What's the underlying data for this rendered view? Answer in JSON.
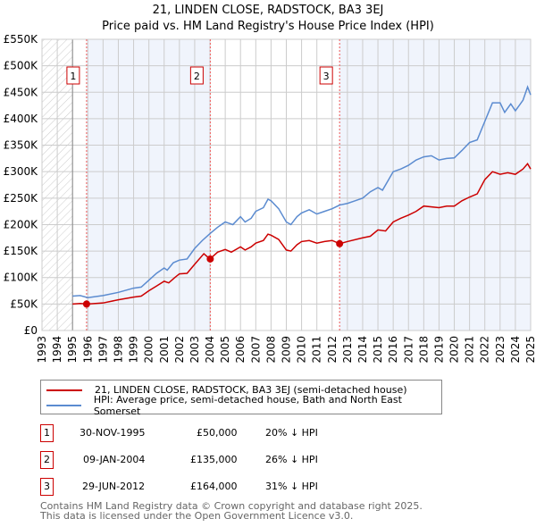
{
  "title": "21, LINDEN CLOSE, RADSTOCK, BA3 3EJ",
  "subtitle": "Price paid vs. HM Land Registry's House Price Index (HPI)",
  "chart_data": {
    "type": "line",
    "xlim": [
      1993,
      2025
    ],
    "ylim": [
      0,
      550000
    ],
    "y_ticks": [
      {
        "v": 0,
        "label": "£0"
      },
      {
        "v": 50000,
        "label": "£50K"
      },
      {
        "v": 100000,
        "label": "£100K"
      },
      {
        "v": 150000,
        "label": "£150K"
      },
      {
        "v": 200000,
        "label": "£200K"
      },
      {
        "v": 250000,
        "label": "£250K"
      },
      {
        "v": 300000,
        "label": "£300K"
      },
      {
        "v": 350000,
        "label": "£350K"
      },
      {
        "v": 400000,
        "label": "£400K"
      },
      {
        "v": 450000,
        "label": "£450K"
      },
      {
        "v": 500000,
        "label": "£500K"
      },
      {
        "v": 550000,
        "label": "£550K"
      }
    ],
    "x_ticks": [
      "1993",
      "1994",
      "1995",
      "1996",
      "1997",
      "1998",
      "1999",
      "2000",
      "2001",
      "2002",
      "2003",
      "2004",
      "2005",
      "2006",
      "2007",
      "2008",
      "2009",
      "2010",
      "2011",
      "2012",
      "2013",
      "2014",
      "2015",
      "2016",
      "2017",
      "2018",
      "2019",
      "2020",
      "2021",
      "2022",
      "2023",
      "2024",
      "2025"
    ],
    "series": [
      {
        "name": "21, LINDEN CLOSE, RADSTOCK, BA3 3EJ (semi-detached house)",
        "color": "#cc0000",
        "points": [
          [
            1995,
            50
          ],
          [
            1995.5,
            51
          ],
          [
            1996,
            50
          ],
          [
            1997,
            52
          ],
          [
            1998,
            58
          ],
          [
            1999,
            63
          ],
          [
            1999.5,
            65
          ],
          [
            2000,
            75
          ],
          [
            2000.5,
            84
          ],
          [
            2001,
            93
          ],
          [
            2001.3,
            90
          ],
          [
            2001.7,
            100
          ],
          [
            2002,
            107
          ],
          [
            2002.5,
            108
          ],
          [
            2003,
            125
          ],
          [
            2003.6,
            145
          ],
          [
            2004,
            135
          ],
          [
            2004.5,
            148
          ],
          [
            2005,
            153
          ],
          [
            2005.4,
            148
          ],
          [
            2006,
            158
          ],
          [
            2006.3,
            152
          ],
          [
            2006.7,
            158
          ],
          [
            2007,
            165
          ],
          [
            2007.5,
            170
          ],
          [
            2007.8,
            182
          ],
          [
            2008,
            180
          ],
          [
            2008.5,
            172
          ],
          [
            2009,
            152
          ],
          [
            2009.3,
            150
          ],
          [
            2009.7,
            162
          ],
          [
            2010,
            168
          ],
          [
            2010.5,
            170
          ],
          [
            2011,
            165
          ],
          [
            2011.5,
            168
          ],
          [
            2012,
            170
          ],
          [
            2012.5,
            164
          ],
          [
            2013,
            168
          ],
          [
            2014,
            175
          ],
          [
            2014.5,
            178
          ],
          [
            2015,
            190
          ],
          [
            2015.5,
            188
          ],
          [
            2016,
            205
          ],
          [
            2016.5,
            212
          ],
          [
            2017,
            218
          ],
          [
            2017.5,
            225
          ],
          [
            2018,
            235
          ],
          [
            2019,
            232
          ],
          [
            2019.5,
            235
          ],
          [
            2020,
            235
          ],
          [
            2020.5,
            245
          ],
          [
            2021,
            252
          ],
          [
            2021.5,
            258
          ],
          [
            2022,
            285
          ],
          [
            2022.5,
            300
          ],
          [
            2023,
            295
          ],
          [
            2023.5,
            298
          ],
          [
            2024,
            295
          ],
          [
            2024.5,
            305
          ],
          [
            2024.8,
            315
          ],
          [
            2025,
            305
          ]
        ]
      },
      {
        "name": "HPI: Average price, semi-detached house, Bath and North East Somerset",
        "color": "#5b8bd0",
        "points": [
          [
            1995,
            65
          ],
          [
            1995.5,
            66
          ],
          [
            1996,
            62
          ],
          [
            1997,
            66
          ],
          [
            1998,
            72
          ],
          [
            1999,
            80
          ],
          [
            1999.5,
            82
          ],
          [
            2000,
            95
          ],
          [
            2000.5,
            108
          ],
          [
            2001,
            118
          ],
          [
            2001.2,
            114
          ],
          [
            2001.6,
            128
          ],
          [
            2002,
            133
          ],
          [
            2002.5,
            135
          ],
          [
            2003,
            155
          ],
          [
            2003.5,
            170
          ],
          [
            2004,
            183
          ],
          [
            2004.5,
            195
          ],
          [
            2005,
            205
          ],
          [
            2005.5,
            200
          ],
          [
            2006,
            215
          ],
          [
            2006.3,
            205
          ],
          [
            2006.7,
            212
          ],
          [
            2007,
            225
          ],
          [
            2007.5,
            232
          ],
          [
            2007.8,
            248
          ],
          [
            2008,
            245
          ],
          [
            2008.5,
            230
          ],
          [
            2009,
            205
          ],
          [
            2009.3,
            200
          ],
          [
            2009.7,
            215
          ],
          [
            2010,
            222
          ],
          [
            2010.5,
            228
          ],
          [
            2011,
            220
          ],
          [
            2011.5,
            225
          ],
          [
            2012,
            230
          ],
          [
            2012.5,
            237
          ],
          [
            2013,
            240
          ],
          [
            2013.5,
            245
          ],
          [
            2014,
            250
          ],
          [
            2014.5,
            262
          ],
          [
            2015,
            270
          ],
          [
            2015.3,
            265
          ],
          [
            2015.7,
            285
          ],
          [
            2016,
            300
          ],
          [
            2016.5,
            305
          ],
          [
            2017,
            312
          ],
          [
            2017.5,
            322
          ],
          [
            2018,
            328
          ],
          [
            2018.5,
            330
          ],
          [
            2019,
            322
          ],
          [
            2019.5,
            325
          ],
          [
            2020,
            326
          ],
          [
            2020.5,
            340
          ],
          [
            2021,
            355
          ],
          [
            2021.5,
            360
          ],
          [
            2022,
            395
          ],
          [
            2022.5,
            430
          ],
          [
            2023,
            430
          ],
          [
            2023.3,
            412
          ],
          [
            2023.7,
            428
          ],
          [
            2024,
            415
          ],
          [
            2024.5,
            435
          ],
          [
            2024.8,
            460
          ],
          [
            2025,
            445
          ]
        ]
      }
    ],
    "sales": [
      {
        "num": "1",
        "x": 1995.92,
        "price": 50000,
        "date": "30-NOV-1995",
        "price_label": "£50,000",
        "hpi": "20% ↓ HPI"
      },
      {
        "num": "2",
        "x": 2004.02,
        "price": 135000,
        "date": "09-JAN-2004",
        "price_label": "£135,000",
        "hpi": "26% ↓ HPI"
      },
      {
        "num": "3",
        "x": 2012.49,
        "price": 164000,
        "date": "29-JUN-2012",
        "price_label": "£164,000",
        "hpi": "31% ↓ HPI"
      }
    ]
  },
  "footer": [
    "Contains HM Land Registry data © Crown copyright and database right 2025.",
    "This data is licensed under the Open Government Licence v3.0."
  ]
}
